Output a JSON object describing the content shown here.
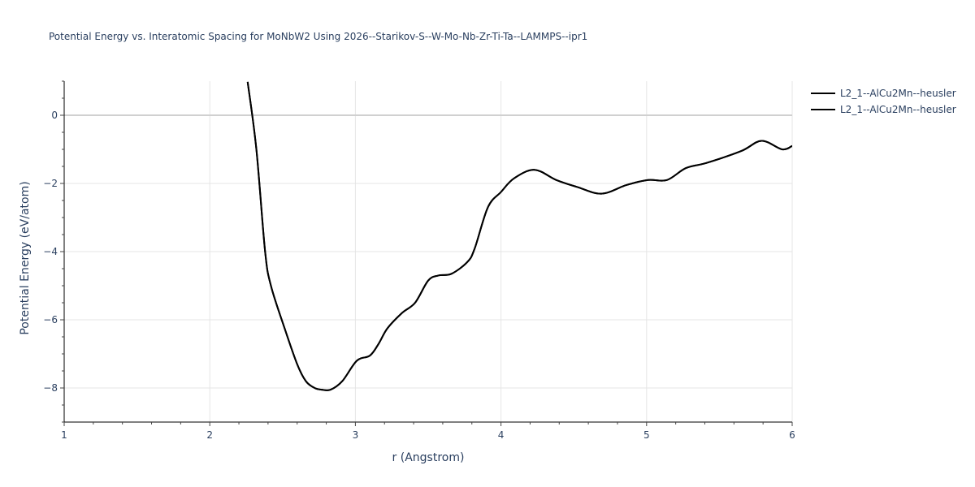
{
  "title": "Potential Energy vs. Interatomic Spacing for MoNbW2 Using 2026--Starikov-S--W-Mo-Nb-Zr-Ti-Ta--LAMMPS--ipr1",
  "legend": [
    {
      "label": "L2_1--AlCu2Mn--heusler",
      "color": "#000000"
    },
    {
      "label": "L2_1--AlCu2Mn--heusler",
      "color": "#000000"
    }
  ],
  "chart_data": {
    "type": "line",
    "title": "Potential Energy vs. Interatomic Spacing for MoNbW2 Using 2026--Starikov-S--W-Mo-Nb-Zr-Ti-Ta--LAMMPS--ipr1",
    "xlabel": "r (Angstrom)",
    "ylabel": "Potential Energy (eV/atom)",
    "xlim": [
      1,
      6
    ],
    "ylim": [
      -9,
      1
    ],
    "xticks": [
      1,
      2,
      3,
      4,
      5,
      6
    ],
    "yticks": [
      0,
      -2,
      -4,
      -6,
      -8
    ],
    "grid": true,
    "legend_position": "right",
    "series": [
      {
        "name": "L2_1--AlCu2Mn--heusler",
        "color": "#000000",
        "x": [
          2.26,
          2.32,
          2.38,
          2.42,
          2.51,
          2.6,
          2.66,
          2.72,
          2.77,
          2.83,
          2.91,
          3.01,
          3.1,
          3.16,
          3.22,
          3.32,
          3.41,
          3.5,
          3.57,
          3.66,
          3.77,
          3.82,
          3.91,
          4.0,
          4.09,
          4.23,
          4.38,
          4.52,
          4.69,
          4.86,
          5.01,
          5.14,
          5.27,
          5.41,
          5.65,
          5.79,
          5.93,
          6.0
        ],
        "y": [
          0.98,
          -1.0,
          -4.0,
          -5.0,
          -6.2,
          -7.3,
          -7.8,
          -8.0,
          -8.05,
          -8.05,
          -7.8,
          -7.2,
          -7.05,
          -6.7,
          -6.25,
          -5.8,
          -5.5,
          -4.85,
          -4.7,
          -4.65,
          -4.3,
          -3.9,
          -2.7,
          -2.25,
          -1.85,
          -1.6,
          -1.9,
          -2.1,
          -2.3,
          -2.05,
          -1.9,
          -1.9,
          -1.55,
          -1.4,
          -1.05,
          -0.75,
          -1.0,
          -0.9
        ]
      },
      {
        "name": "L2_1--AlCu2Mn--heusler",
        "color": "#000000",
        "x": [
          2.26,
          2.32,
          2.38,
          2.42,
          2.51,
          2.6,
          2.66,
          2.72,
          2.77,
          2.83,
          2.91,
          3.01,
          3.1,
          3.16,
          3.22,
          3.32,
          3.41,
          3.5,
          3.57,
          3.66,
          3.77,
          3.82,
          3.91,
          4.0,
          4.09,
          4.23,
          4.38,
          4.52,
          4.69,
          4.86,
          5.01,
          5.14,
          5.27,
          5.41,
          5.65,
          5.79,
          5.93,
          6.0
        ],
        "y": [
          0.98,
          -1.0,
          -4.0,
          -5.0,
          -6.2,
          -7.3,
          -7.8,
          -8.0,
          -8.05,
          -8.05,
          -7.8,
          -7.2,
          -7.05,
          -6.7,
          -6.25,
          -5.8,
          -5.5,
          -4.85,
          -4.7,
          -4.65,
          -4.3,
          -3.9,
          -2.7,
          -2.25,
          -1.85,
          -1.6,
          -1.9,
          -2.1,
          -2.3,
          -2.05,
          -1.9,
          -1.9,
          -1.55,
          -1.4,
          -1.05,
          -0.75,
          -1.0,
          -0.9
        ]
      }
    ]
  }
}
